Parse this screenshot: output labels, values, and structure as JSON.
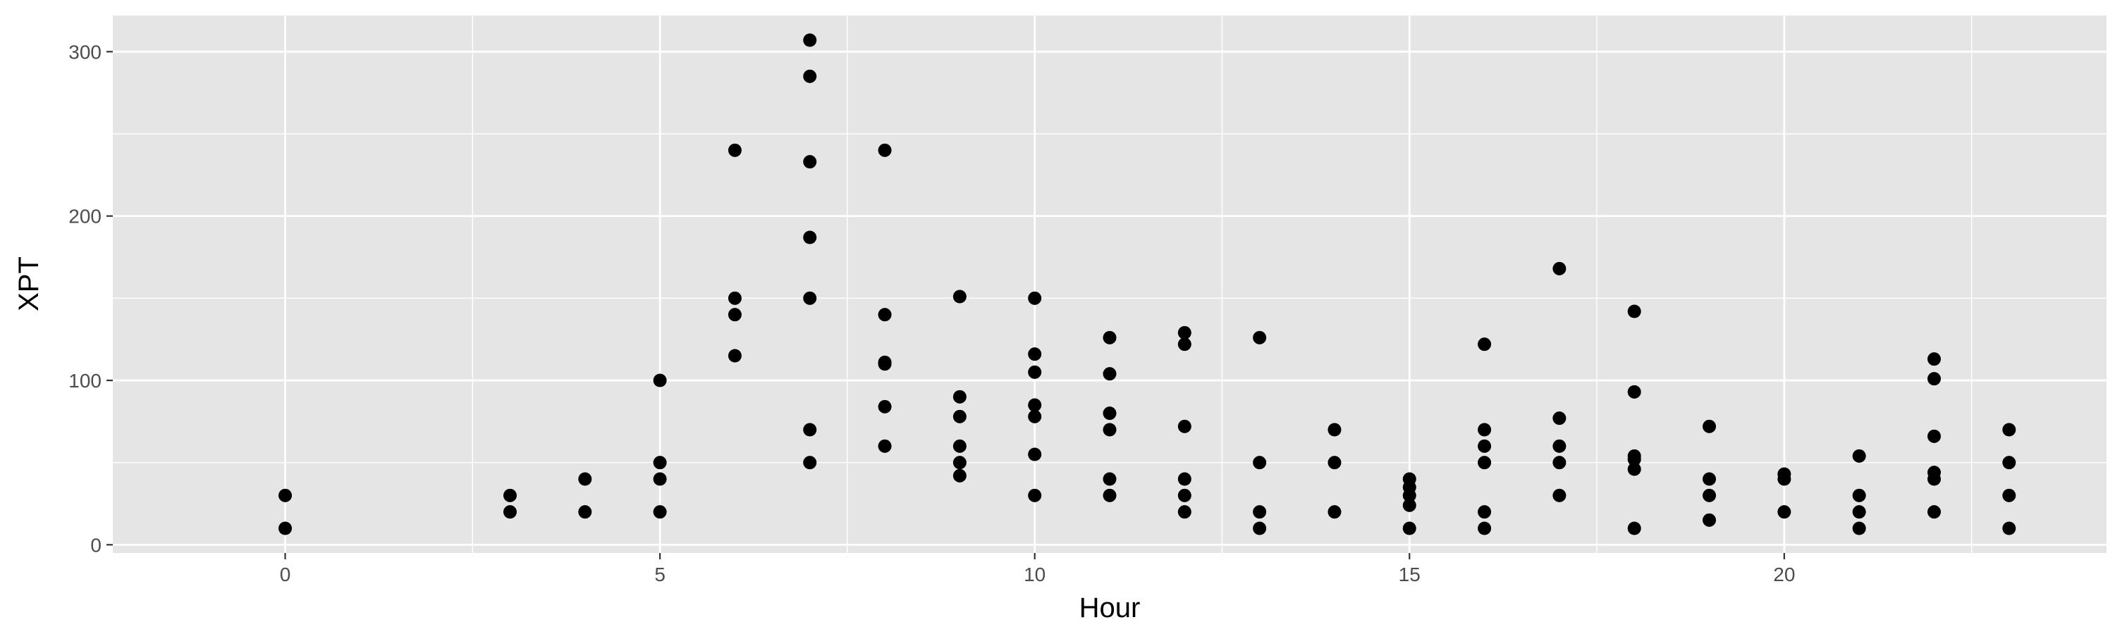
{
  "chart_data": {
    "type": "scatter",
    "title": "",
    "xlabel": "Hour",
    "ylabel": "XPT",
    "xlim": [
      -2.3,
      24.3
    ],
    "ylim": [
      -5,
      322
    ],
    "x_ticks": [
      0,
      5,
      10,
      15,
      20
    ],
    "x_tick_labels": [
      "0",
      "5",
      "10",
      "15",
      "20"
    ],
    "y_ticks": [
      0,
      100,
      200,
      300
    ],
    "y_tick_labels": [
      "0",
      "100",
      "200",
      "300"
    ],
    "grid": true,
    "legend": "none",
    "colors": {
      "panel": "#e5e5e5",
      "grid": "#ffffff",
      "point": "#000000",
      "tick": "#333333"
    },
    "points": [
      [
        0,
        30
      ],
      [
        0,
        10
      ],
      [
        3,
        30
      ],
      [
        3,
        20
      ],
      [
        4,
        40
      ],
      [
        4,
        20
      ],
      [
        5,
        100
      ],
      [
        5,
        50
      ],
      [
        5,
        40
      ],
      [
        5,
        20
      ],
      [
        6,
        240
      ],
      [
        6,
        150
      ],
      [
        6,
        140
      ],
      [
        6,
        115
      ],
      [
        7,
        307
      ],
      [
        7,
        285
      ],
      [
        7,
        233
      ],
      [
        7,
        187
      ],
      [
        7,
        150
      ],
      [
        7,
        70
      ],
      [
        7,
        50
      ],
      [
        8,
        240
      ],
      [
        8,
        140
      ],
      [
        8,
        111
      ],
      [
        8,
        110
      ],
      [
        8,
        84
      ],
      [
        8,
        60
      ],
      [
        9,
        151
      ],
      [
        9,
        90
      ],
      [
        9,
        78
      ],
      [
        9,
        60
      ],
      [
        9,
        50
      ],
      [
        9,
        42
      ],
      [
        10,
        150
      ],
      [
        10,
        116
      ],
      [
        10,
        105
      ],
      [
        10,
        85
      ],
      [
        10,
        78
      ],
      [
        10,
        55
      ],
      [
        10,
        30
      ],
      [
        11,
        126
      ],
      [
        11,
        104
      ],
      [
        11,
        80
      ],
      [
        11,
        70
      ],
      [
        11,
        40
      ],
      [
        11,
        30
      ],
      [
        12,
        129
      ],
      [
        12,
        122
      ],
      [
        12,
        72
      ],
      [
        12,
        40
      ],
      [
        12,
        30
      ],
      [
        12,
        20
      ],
      [
        13,
        126
      ],
      [
        13,
        50
      ],
      [
        13,
        20
      ],
      [
        13,
        10
      ],
      [
        14,
        70
      ],
      [
        14,
        50
      ],
      [
        14,
        20
      ],
      [
        15,
        40
      ],
      [
        15,
        35
      ],
      [
        15,
        30
      ],
      [
        15,
        24
      ],
      [
        15,
        10
      ],
      [
        16,
        122
      ],
      [
        16,
        70
      ],
      [
        16,
        60
      ],
      [
        16,
        50
      ],
      [
        16,
        20
      ],
      [
        16,
        10
      ],
      [
        17,
        168
      ],
      [
        17,
        77
      ],
      [
        17,
        60
      ],
      [
        17,
        50
      ],
      [
        17,
        30
      ],
      [
        18,
        142
      ],
      [
        18,
        93
      ],
      [
        18,
        54
      ],
      [
        18,
        52
      ],
      [
        18,
        46
      ],
      [
        18,
        10
      ],
      [
        19,
        72
      ],
      [
        19,
        40
      ],
      [
        19,
        30
      ],
      [
        19,
        15
      ],
      [
        20,
        43
      ],
      [
        20,
        40
      ],
      [
        20,
        20
      ],
      [
        21,
        54
      ],
      [
        21,
        30
      ],
      [
        21,
        20
      ],
      [
        21,
        10
      ],
      [
        22,
        113
      ],
      [
        22,
        101
      ],
      [
        22,
        66
      ],
      [
        22,
        44
      ],
      [
        22,
        40
      ],
      [
        22,
        20
      ],
      [
        23,
        70
      ],
      [
        23,
        50
      ],
      [
        23,
        30
      ],
      [
        23,
        10
      ]
    ]
  }
}
